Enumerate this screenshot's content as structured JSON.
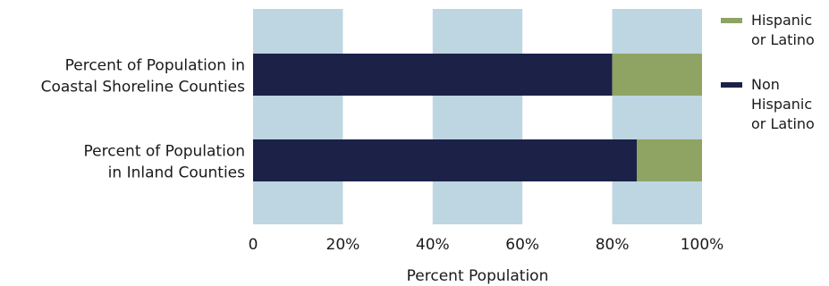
{
  "chart_data": {
    "type": "bar",
    "orientation": "horizontal",
    "stacked": true,
    "categories": [
      [
        "Percent of Population in",
        "Coastal Shoreline Counties"
      ],
      [
        "Percent of Population",
        "in Inland Counties"
      ]
    ],
    "series": [
      {
        "name": [
          "Non",
          "Hispanic",
          "or Latino"
        ],
        "values": [
          80,
          85.5
        ],
        "color": "#1c2148"
      },
      {
        "name": [
          "Hispanic",
          "or Latino"
        ],
        "values": [
          20,
          14.5
        ],
        "color": "#8fa463"
      }
    ],
    "legend_order": [
      1,
      0
    ],
    "xlabel": "Percent Population",
    "xlim": [
      0,
      100
    ],
    "xticks": [
      0,
      20,
      40,
      60,
      80,
      100
    ],
    "xtick_labels": [
      "0",
      "20%",
      "40%",
      "60%",
      "80%",
      "100%"
    ],
    "background_bands": {
      "color": "#bdd6e2",
      "ranges": [
        [
          0,
          20
        ],
        [
          40,
          60
        ],
        [
          80,
          100
        ]
      ]
    },
    "legend_position": "right"
  }
}
